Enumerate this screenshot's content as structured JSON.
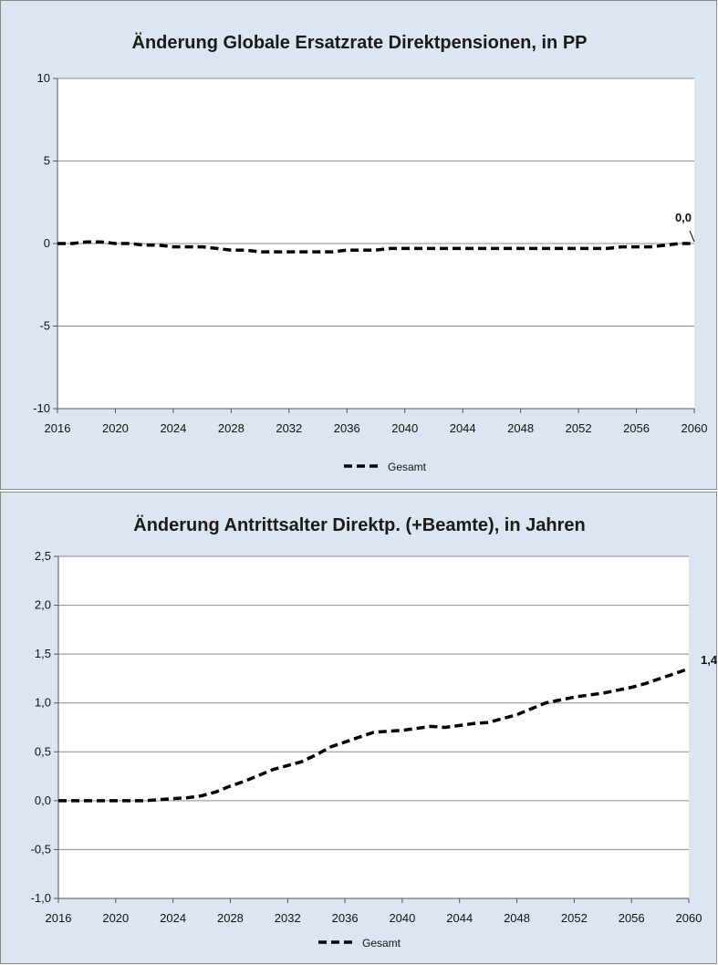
{
  "chart_data": [
    {
      "type": "line",
      "title": "Änderung Globale Ersatzrate Direktpensionen, in PP",
      "xlabel": "",
      "ylabel": "",
      "xlim": [
        2016,
        2060
      ],
      "ylim": [
        -10,
        10
      ],
      "y_ticks": [
        10,
        5,
        0,
        -5,
        -10
      ],
      "y_tick_labels": [
        "10",
        "5",
        "0",
        "-5",
        "-10"
      ],
      "x_ticks": [
        2016,
        2020,
        2024,
        2028,
        2032,
        2036,
        2040,
        2044,
        2048,
        2052,
        2056,
        2060
      ],
      "x_tick_labels": [
        "2016",
        "2020",
        "2024",
        "2028",
        "2032",
        "2036",
        "2040",
        "2044",
        "2048",
        "2052",
        "2056",
        "2060"
      ],
      "grid": true,
      "legend_position": "bottom",
      "series": [
        {
          "name": "Gesamt",
          "x": [
            2016,
            2017,
            2018,
            2019,
            2020,
            2021,
            2022,
            2023,
            2024,
            2025,
            2026,
            2027,
            2028,
            2029,
            2030,
            2031,
            2032,
            2033,
            2034,
            2035,
            2036,
            2037,
            2038,
            2039,
            2040,
            2041,
            2042,
            2043,
            2044,
            2045,
            2046,
            2047,
            2048,
            2049,
            2050,
            2051,
            2052,
            2053,
            2054,
            2055,
            2056,
            2057,
            2058,
            2059,
            2060
          ],
          "y": [
            0,
            0,
            0.1,
            0.1,
            0,
            0,
            -0.1,
            -0.1,
            -0.2,
            -0.2,
            -0.2,
            -0.3,
            -0.4,
            -0.4,
            -0.5,
            -0.5,
            -0.5,
            -0.5,
            -0.5,
            -0.5,
            -0.4,
            -0.4,
            -0.4,
            -0.3,
            -0.3,
            -0.3,
            -0.3,
            -0.3,
            -0.3,
            -0.3,
            -0.3,
            -0.3,
            -0.3,
            -0.3,
            -0.3,
            -0.3,
            -0.3,
            -0.3,
            -0.3,
            -0.2,
            -0.2,
            -0.2,
            -0.1,
            0,
            0
          ]
        }
      ],
      "annotation": {
        "text": "0,0",
        "x": 2060,
        "y": 0
      }
    },
    {
      "type": "line",
      "title": "Änderung Antrittsalter Direktp. (+Beamte), in Jahren",
      "xlabel": "",
      "ylabel": "",
      "xlim": [
        2016,
        2060
      ],
      "ylim": [
        -1.0,
        2.5
      ],
      "y_ticks": [
        2.5,
        2.0,
        1.5,
        1.0,
        0.5,
        0.0,
        -0.5,
        -1.0
      ],
      "y_tick_labels": [
        "2,5",
        "2,0",
        "1,5",
        "1,0",
        "0,5",
        "0,0",
        "-0,5",
        "-1,0"
      ],
      "x_ticks": [
        2016,
        2020,
        2024,
        2028,
        2032,
        2036,
        2040,
        2044,
        2048,
        2052,
        2056,
        2060
      ],
      "x_tick_labels": [
        "2016",
        "2020",
        "2024",
        "2028",
        "2032",
        "2036",
        "2040",
        "2044",
        "2048",
        "2052",
        "2056",
        "2060"
      ],
      "grid": true,
      "legend_position": "bottom",
      "series": [
        {
          "name": "Gesamt",
          "x": [
            2016,
            2017,
            2018,
            2019,
            2020,
            2021,
            2022,
            2023,
            2024,
            2025,
            2026,
            2027,
            2028,
            2029,
            2030,
            2031,
            2032,
            2033,
            2034,
            2035,
            2036,
            2037,
            2038,
            2039,
            2040,
            2041,
            2042,
            2043,
            2044,
            2045,
            2046,
            2047,
            2048,
            2049,
            2050,
            2051,
            2052,
            2053,
            2054,
            2055,
            2056,
            2057,
            2058,
            2059,
            2060
          ],
          "y": [
            0.0,
            0.0,
            0.0,
            0.0,
            0.0,
            0.0,
            0.0,
            0.01,
            0.02,
            0.03,
            0.05,
            0.09,
            0.15,
            0.2,
            0.26,
            0.32,
            0.36,
            0.4,
            0.47,
            0.55,
            0.6,
            0.65,
            0.7,
            0.71,
            0.72,
            0.74,
            0.76,
            0.75,
            0.77,
            0.79,
            0.8,
            0.84,
            0.88,
            0.94,
            1.0,
            1.03,
            1.06,
            1.08,
            1.1,
            1.13,
            1.16,
            1.2,
            1.25,
            1.3,
            1.35
          ]
        }
      ],
      "annotation": {
        "text": "1,4",
        "x": 2060,
        "y": 1.35
      }
    }
  ]
}
